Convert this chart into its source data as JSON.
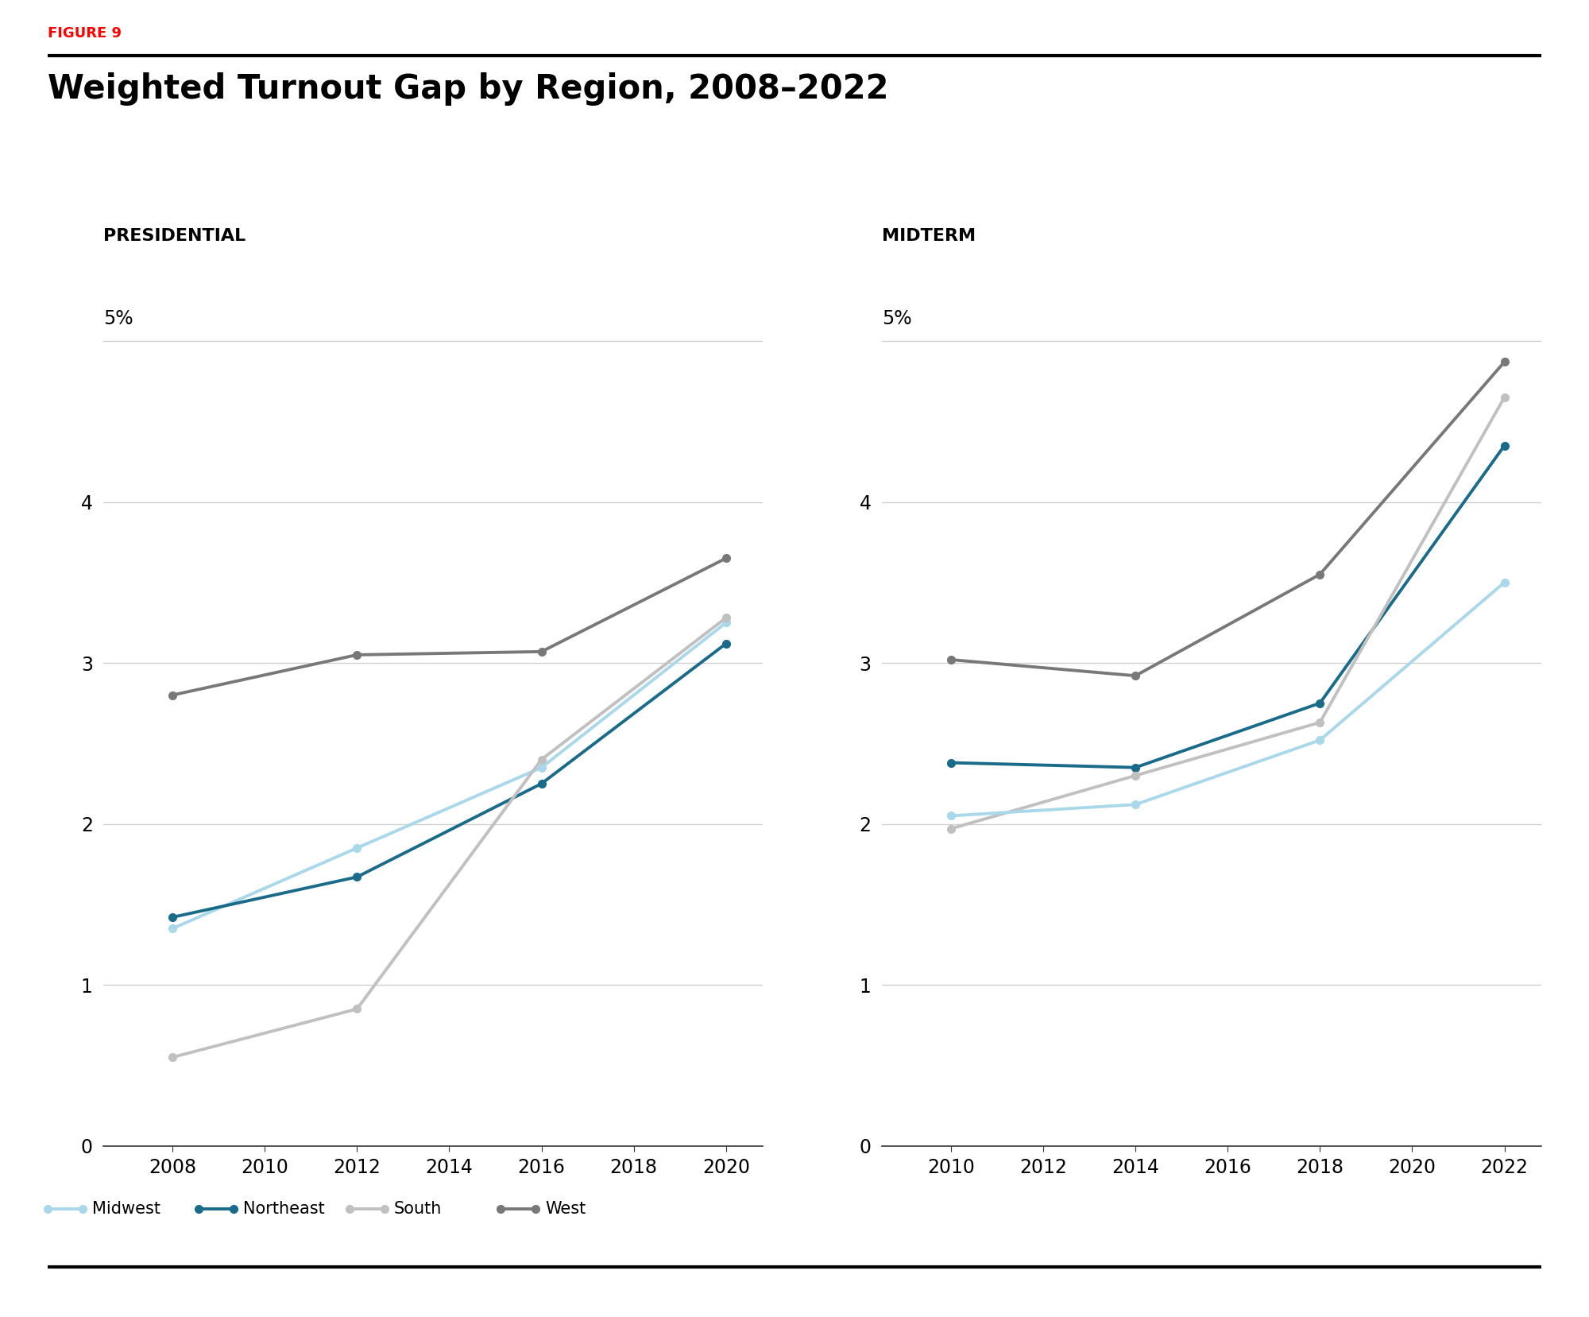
{
  "figure_label": "FIGURE 9",
  "title": "Weighted Turnout Gap by Region, 2008–2022",
  "presidential_label": "PRESIDENTIAL",
  "midterm_label": "MIDTERM",
  "presidential": {
    "years": [
      2008,
      2012,
      2016,
      2020
    ],
    "midwest": [
      1.35,
      1.85,
      2.35,
      3.25
    ],
    "northeast": [
      1.42,
      1.67,
      2.25,
      3.12
    ],
    "south": [
      0.55,
      0.85,
      2.4,
      3.28
    ],
    "west": [
      2.8,
      3.05,
      3.07,
      3.65
    ]
  },
  "midterm": {
    "years": [
      2010,
      2014,
      2018,
      2022
    ],
    "midwest": [
      2.05,
      2.12,
      2.52,
      3.5
    ],
    "northeast": [
      2.38,
      2.35,
      2.75,
      4.35
    ],
    "south": [
      1.97,
      2.3,
      2.63,
      4.65
    ],
    "west": [
      3.02,
      2.92,
      3.55,
      4.87
    ]
  },
  "colors": {
    "midwest": "#a8d8ea",
    "northeast": "#1a6b8a",
    "south": "#c0c0c0",
    "west": "#787878"
  },
  "ylim": [
    0,
    5.4
  ],
  "yticks": [
    0,
    1,
    2,
    3,
    4
  ],
  "ytick_labels": [
    "0",
    "1",
    "2",
    "3",
    "4"
  ],
  "y5_label": "5%",
  "bg_color": "#ffffff",
  "grid_color": "#cccccc",
  "line_width": 2.8,
  "marker_size": 7
}
